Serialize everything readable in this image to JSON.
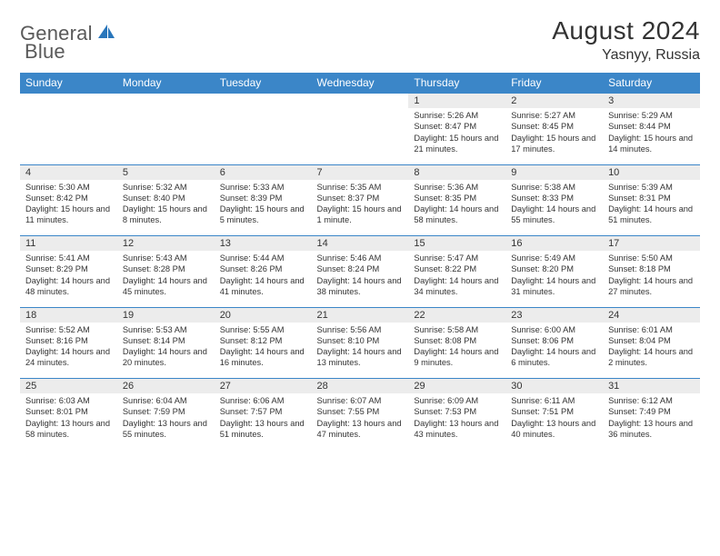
{
  "brand": {
    "word1": "General",
    "word2": "Blue"
  },
  "title": "August 2024",
  "location": "Yasnyy, Russia",
  "colors": {
    "header_bg": "#3b86c8",
    "header_text": "#ffffff",
    "daynum_bg": "#ececec",
    "row_border": "#3b86c8",
    "text": "#333333",
    "logo_blue": "#2976bb"
  },
  "dayHeaders": [
    "Sunday",
    "Monday",
    "Tuesday",
    "Wednesday",
    "Thursday",
    "Friday",
    "Saturday"
  ],
  "weeks": [
    [
      {
        "n": "",
        "sunrise": "",
        "sunset": "",
        "daylight": ""
      },
      {
        "n": "",
        "sunrise": "",
        "sunset": "",
        "daylight": ""
      },
      {
        "n": "",
        "sunrise": "",
        "sunset": "",
        "daylight": ""
      },
      {
        "n": "",
        "sunrise": "",
        "sunset": "",
        "daylight": ""
      },
      {
        "n": "1",
        "sunrise": "Sunrise: 5:26 AM",
        "sunset": "Sunset: 8:47 PM",
        "daylight": "Daylight: 15 hours and 21 minutes."
      },
      {
        "n": "2",
        "sunrise": "Sunrise: 5:27 AM",
        "sunset": "Sunset: 8:45 PM",
        "daylight": "Daylight: 15 hours and 17 minutes."
      },
      {
        "n": "3",
        "sunrise": "Sunrise: 5:29 AM",
        "sunset": "Sunset: 8:44 PM",
        "daylight": "Daylight: 15 hours and 14 minutes."
      }
    ],
    [
      {
        "n": "4",
        "sunrise": "Sunrise: 5:30 AM",
        "sunset": "Sunset: 8:42 PM",
        "daylight": "Daylight: 15 hours and 11 minutes."
      },
      {
        "n": "5",
        "sunrise": "Sunrise: 5:32 AM",
        "sunset": "Sunset: 8:40 PM",
        "daylight": "Daylight: 15 hours and 8 minutes."
      },
      {
        "n": "6",
        "sunrise": "Sunrise: 5:33 AM",
        "sunset": "Sunset: 8:39 PM",
        "daylight": "Daylight: 15 hours and 5 minutes."
      },
      {
        "n": "7",
        "sunrise": "Sunrise: 5:35 AM",
        "sunset": "Sunset: 8:37 PM",
        "daylight": "Daylight: 15 hours and 1 minute."
      },
      {
        "n": "8",
        "sunrise": "Sunrise: 5:36 AM",
        "sunset": "Sunset: 8:35 PM",
        "daylight": "Daylight: 14 hours and 58 minutes."
      },
      {
        "n": "9",
        "sunrise": "Sunrise: 5:38 AM",
        "sunset": "Sunset: 8:33 PM",
        "daylight": "Daylight: 14 hours and 55 minutes."
      },
      {
        "n": "10",
        "sunrise": "Sunrise: 5:39 AM",
        "sunset": "Sunset: 8:31 PM",
        "daylight": "Daylight: 14 hours and 51 minutes."
      }
    ],
    [
      {
        "n": "11",
        "sunrise": "Sunrise: 5:41 AM",
        "sunset": "Sunset: 8:29 PM",
        "daylight": "Daylight: 14 hours and 48 minutes."
      },
      {
        "n": "12",
        "sunrise": "Sunrise: 5:43 AM",
        "sunset": "Sunset: 8:28 PM",
        "daylight": "Daylight: 14 hours and 45 minutes."
      },
      {
        "n": "13",
        "sunrise": "Sunrise: 5:44 AM",
        "sunset": "Sunset: 8:26 PM",
        "daylight": "Daylight: 14 hours and 41 minutes."
      },
      {
        "n": "14",
        "sunrise": "Sunrise: 5:46 AM",
        "sunset": "Sunset: 8:24 PM",
        "daylight": "Daylight: 14 hours and 38 minutes."
      },
      {
        "n": "15",
        "sunrise": "Sunrise: 5:47 AM",
        "sunset": "Sunset: 8:22 PM",
        "daylight": "Daylight: 14 hours and 34 minutes."
      },
      {
        "n": "16",
        "sunrise": "Sunrise: 5:49 AM",
        "sunset": "Sunset: 8:20 PM",
        "daylight": "Daylight: 14 hours and 31 minutes."
      },
      {
        "n": "17",
        "sunrise": "Sunrise: 5:50 AM",
        "sunset": "Sunset: 8:18 PM",
        "daylight": "Daylight: 14 hours and 27 minutes."
      }
    ],
    [
      {
        "n": "18",
        "sunrise": "Sunrise: 5:52 AM",
        "sunset": "Sunset: 8:16 PM",
        "daylight": "Daylight: 14 hours and 24 minutes."
      },
      {
        "n": "19",
        "sunrise": "Sunrise: 5:53 AM",
        "sunset": "Sunset: 8:14 PM",
        "daylight": "Daylight: 14 hours and 20 minutes."
      },
      {
        "n": "20",
        "sunrise": "Sunrise: 5:55 AM",
        "sunset": "Sunset: 8:12 PM",
        "daylight": "Daylight: 14 hours and 16 minutes."
      },
      {
        "n": "21",
        "sunrise": "Sunrise: 5:56 AM",
        "sunset": "Sunset: 8:10 PM",
        "daylight": "Daylight: 14 hours and 13 minutes."
      },
      {
        "n": "22",
        "sunrise": "Sunrise: 5:58 AM",
        "sunset": "Sunset: 8:08 PM",
        "daylight": "Daylight: 14 hours and 9 minutes."
      },
      {
        "n": "23",
        "sunrise": "Sunrise: 6:00 AM",
        "sunset": "Sunset: 8:06 PM",
        "daylight": "Daylight: 14 hours and 6 minutes."
      },
      {
        "n": "24",
        "sunrise": "Sunrise: 6:01 AM",
        "sunset": "Sunset: 8:04 PM",
        "daylight": "Daylight: 14 hours and 2 minutes."
      }
    ],
    [
      {
        "n": "25",
        "sunrise": "Sunrise: 6:03 AM",
        "sunset": "Sunset: 8:01 PM",
        "daylight": "Daylight: 13 hours and 58 minutes."
      },
      {
        "n": "26",
        "sunrise": "Sunrise: 6:04 AM",
        "sunset": "Sunset: 7:59 PM",
        "daylight": "Daylight: 13 hours and 55 minutes."
      },
      {
        "n": "27",
        "sunrise": "Sunrise: 6:06 AM",
        "sunset": "Sunset: 7:57 PM",
        "daylight": "Daylight: 13 hours and 51 minutes."
      },
      {
        "n": "28",
        "sunrise": "Sunrise: 6:07 AM",
        "sunset": "Sunset: 7:55 PM",
        "daylight": "Daylight: 13 hours and 47 minutes."
      },
      {
        "n": "29",
        "sunrise": "Sunrise: 6:09 AM",
        "sunset": "Sunset: 7:53 PM",
        "daylight": "Daylight: 13 hours and 43 minutes."
      },
      {
        "n": "30",
        "sunrise": "Sunrise: 6:11 AM",
        "sunset": "Sunset: 7:51 PM",
        "daylight": "Daylight: 13 hours and 40 minutes."
      },
      {
        "n": "31",
        "sunrise": "Sunrise: 6:12 AM",
        "sunset": "Sunset: 7:49 PM",
        "daylight": "Daylight: 13 hours and 36 minutes."
      }
    ]
  ]
}
